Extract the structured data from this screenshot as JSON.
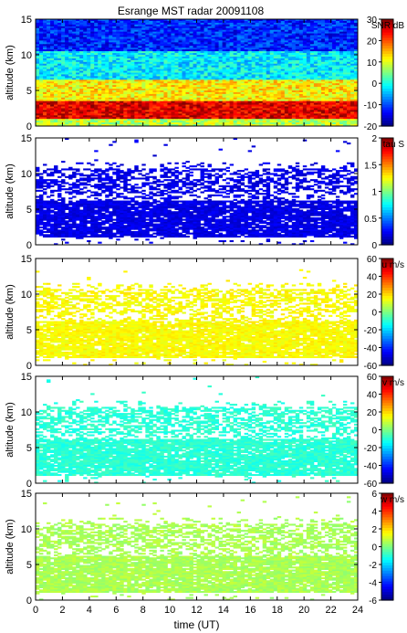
{
  "title": "Esrange MST radar 20091108",
  "chart_data": [
    {
      "type": "heatmap",
      "quantity": "SNR",
      "colorbar_label": "SNR dB",
      "colorbar_ticks": [
        -20,
        -10,
        0,
        10,
        20,
        30
      ],
      "clim": [
        -20,
        30
      ],
      "ylabel": "altitude (km)",
      "ylim": [
        0,
        15
      ],
      "yticks": [
        0,
        5,
        10,
        15
      ],
      "xlim": [
        0,
        24
      ],
      "description_layers": [
        {
          "alt_from": 0,
          "alt_to": 1.0,
          "value": 8
        },
        {
          "alt_from": 1.0,
          "alt_to": 3.5,
          "value": 25
        },
        {
          "alt_from": 3.5,
          "alt_to": 6.5,
          "value": 12
        },
        {
          "alt_from": 6.5,
          "alt_to": 10.5,
          "value": -2
        },
        {
          "alt_from": 10.5,
          "alt_to": 15,
          "value": -12
        }
      ]
    },
    {
      "type": "heatmap",
      "quantity": "tau",
      "colorbar_label": "tau S",
      "colorbar_ticks": [
        0,
        0.5,
        1,
        1.5,
        2
      ],
      "clim": [
        0,
        2
      ],
      "ylabel": "altitude (km)",
      "ylim": [
        0,
        15
      ],
      "yticks": [
        0,
        5,
        10,
        15
      ],
      "xlim": [
        0,
        24
      ],
      "dominant_value": 0.2
    },
    {
      "type": "heatmap",
      "quantity": "u",
      "colorbar_label": "u m/s",
      "colorbar_ticks": [
        -60,
        -40,
        -20,
        0,
        20,
        40,
        60
      ],
      "clim": [
        -60,
        60
      ],
      "ylabel": "altitude (km)",
      "ylim": [
        0,
        15
      ],
      "yticks": [
        0,
        5,
        10,
        15
      ],
      "xlim": [
        0,
        24
      ],
      "dominant_value": 15
    },
    {
      "type": "heatmap",
      "quantity": "v",
      "colorbar_label": "v m/s",
      "colorbar_ticks": [
        -60,
        -40,
        -20,
        0,
        20,
        40,
        60
      ],
      "clim": [
        -60,
        60
      ],
      "ylabel": "altitude (km)",
      "ylim": [
        0,
        15
      ],
      "yticks": [
        0,
        5,
        10,
        15
      ],
      "xlim": [
        0,
        24
      ],
      "dominant_value": -10
    },
    {
      "type": "heatmap",
      "quantity": "w",
      "colorbar_label": "w m/s",
      "colorbar_ticks": [
        -6,
        -4,
        -2,
        0,
        2,
        4,
        6
      ],
      "clim": [
        -6,
        6
      ],
      "ylabel": "altitude (km)",
      "ylim": [
        0,
        15
      ],
      "yticks": [
        0,
        5,
        10,
        15
      ],
      "xlim": [
        0,
        24
      ],
      "dominant_value": 0.5
    }
  ],
  "xaxis": {
    "label": "time (UT)",
    "ticks": [
      0,
      2,
      4,
      6,
      8,
      10,
      12,
      14,
      16,
      18,
      20,
      22,
      24
    ]
  },
  "colors": {
    "tau_echo": "#8b3a3a",
    "u_echo": "#d6ef5a",
    "v_echo": "#7ff0b4",
    "w_echo": "#9ef08a"
  }
}
